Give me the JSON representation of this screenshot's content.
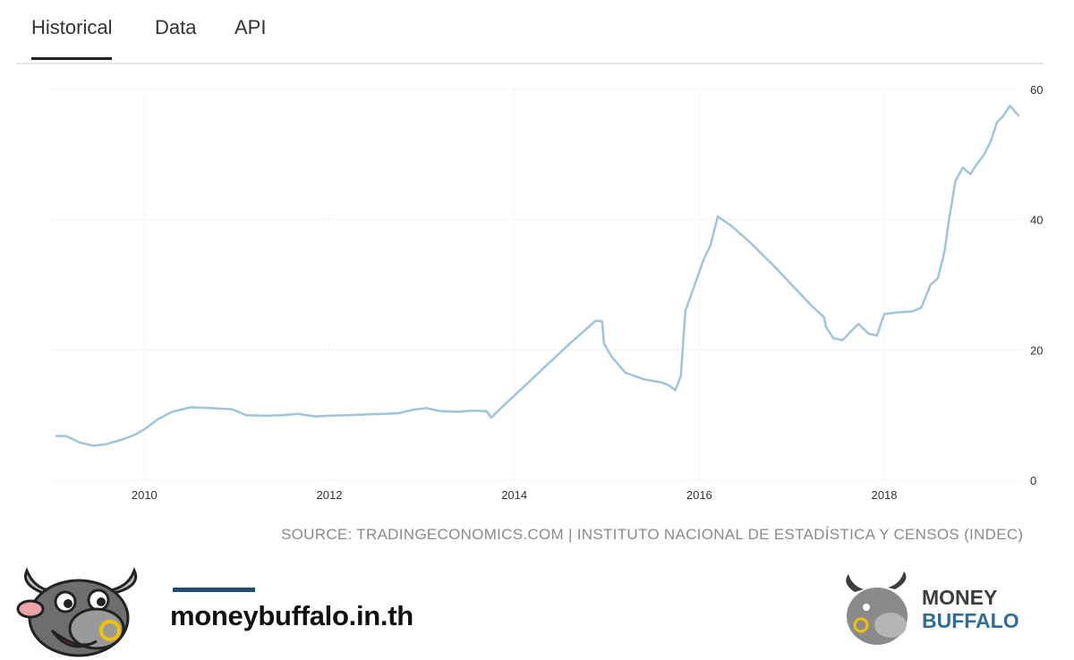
{
  "tabs": [
    {
      "label": "Historical",
      "active": true
    },
    {
      "label": "Data",
      "active": false
    },
    {
      "label": "API",
      "active": false
    }
  ],
  "source_text": "SOURCE: TRADINGECONOMICS.COM | INSTITUTO NACIONAL DE ESTADÍSTICA Y CENSOS (INDEC)",
  "footer": {
    "site_url": "moneybuffalo.in.th",
    "logo_line1": "MONEY",
    "logo_line2": "BUFFALO"
  },
  "colors": {
    "line": "#9ec5d8",
    "grid": "#ececec",
    "accent": "#1e4f72",
    "brand_blue": "#2f6e9b"
  },
  "chart_data": {
    "type": "line",
    "title": "",
    "xlabel": "",
    "ylabel": "",
    "xlim": [
      2009.0,
      2019.5
    ],
    "ylim": [
      0,
      60
    ],
    "x_ticks": [
      2010,
      2012,
      2014,
      2016,
      2018
    ],
    "x_tick_labels": [
      "2010",
      "2012",
      "2014",
      "2016",
      "2018"
    ],
    "y_ticks": [
      0,
      20,
      40,
      60
    ],
    "y_tick_labels": [
      "0",
      "20",
      "40",
      "60"
    ],
    "y_axis_position": "right",
    "grid": true,
    "legend": "none",
    "series": [
      {
        "x": [
          2009.05,
          2009.15,
          2009.3,
          2009.45,
          2009.58,
          2009.75,
          2009.9,
          2010.0,
          2010.15,
          2010.3,
          2010.5,
          2010.7,
          2010.95,
          2011.1,
          2011.3,
          2011.5,
          2011.65,
          2011.85,
          2012.0,
          2012.2,
          2012.4,
          2012.6,
          2012.75,
          2012.9,
          2013.05,
          2013.2,
          2013.4,
          2013.55,
          2013.7,
          2013.75,
          2013.85,
          2014.0,
          2014.3,
          2014.6,
          2014.88,
          2014.95,
          2014.97,
          2015.05,
          2015.2,
          2015.4,
          2015.6,
          2015.68,
          2015.74,
          2015.8,
          2015.85,
          2015.95,
          2016.05,
          2016.12,
          2016.2,
          2016.35,
          2016.55,
          2016.8,
          2017.0,
          2017.2,
          2017.35,
          2017.37,
          2017.45,
          2017.55,
          2017.65,
          2017.72,
          2017.83,
          2017.92,
          2018.0,
          2018.15,
          2018.3,
          2018.4,
          2018.5,
          2018.58,
          2018.65,
          2018.7,
          2018.77,
          2018.85,
          2018.93,
          2019.0,
          2019.08,
          2019.15,
          2019.22,
          2019.28,
          2019.36,
          2019.45
        ],
        "y": [
          6.8,
          6.8,
          5.8,
          5.3,
          5.5,
          6.2,
          7.0,
          7.8,
          9.4,
          10.5,
          11.2,
          11.1,
          10.9,
          10.0,
          9.9,
          10.0,
          10.2,
          9.8,
          9.9,
          10.0,
          10.1,
          10.2,
          10.3,
          10.8,
          11.1,
          10.6,
          10.5,
          10.7,
          10.6,
          9.6,
          11.0,
          13.0,
          17.0,
          21.0,
          24.5,
          24.4,
          21.0,
          19.0,
          16.5,
          15.5,
          15.0,
          14.5,
          13.8,
          16.0,
          26.0,
          30.0,
          34.0,
          36.0,
          40.5,
          39.0,
          36.5,
          33.0,
          30.0,
          27.0,
          25.0,
          23.5,
          21.8,
          21.5,
          23.0,
          24.0,
          22.5,
          22.2,
          25.5,
          25.8,
          25.9,
          26.5,
          30.0,
          31.0,
          35.0,
          40.0,
          46.0,
          48.0,
          47.0,
          48.5,
          50.0,
          52.0,
          55.0,
          55.8,
          57.5,
          56.0
        ]
      }
    ]
  }
}
